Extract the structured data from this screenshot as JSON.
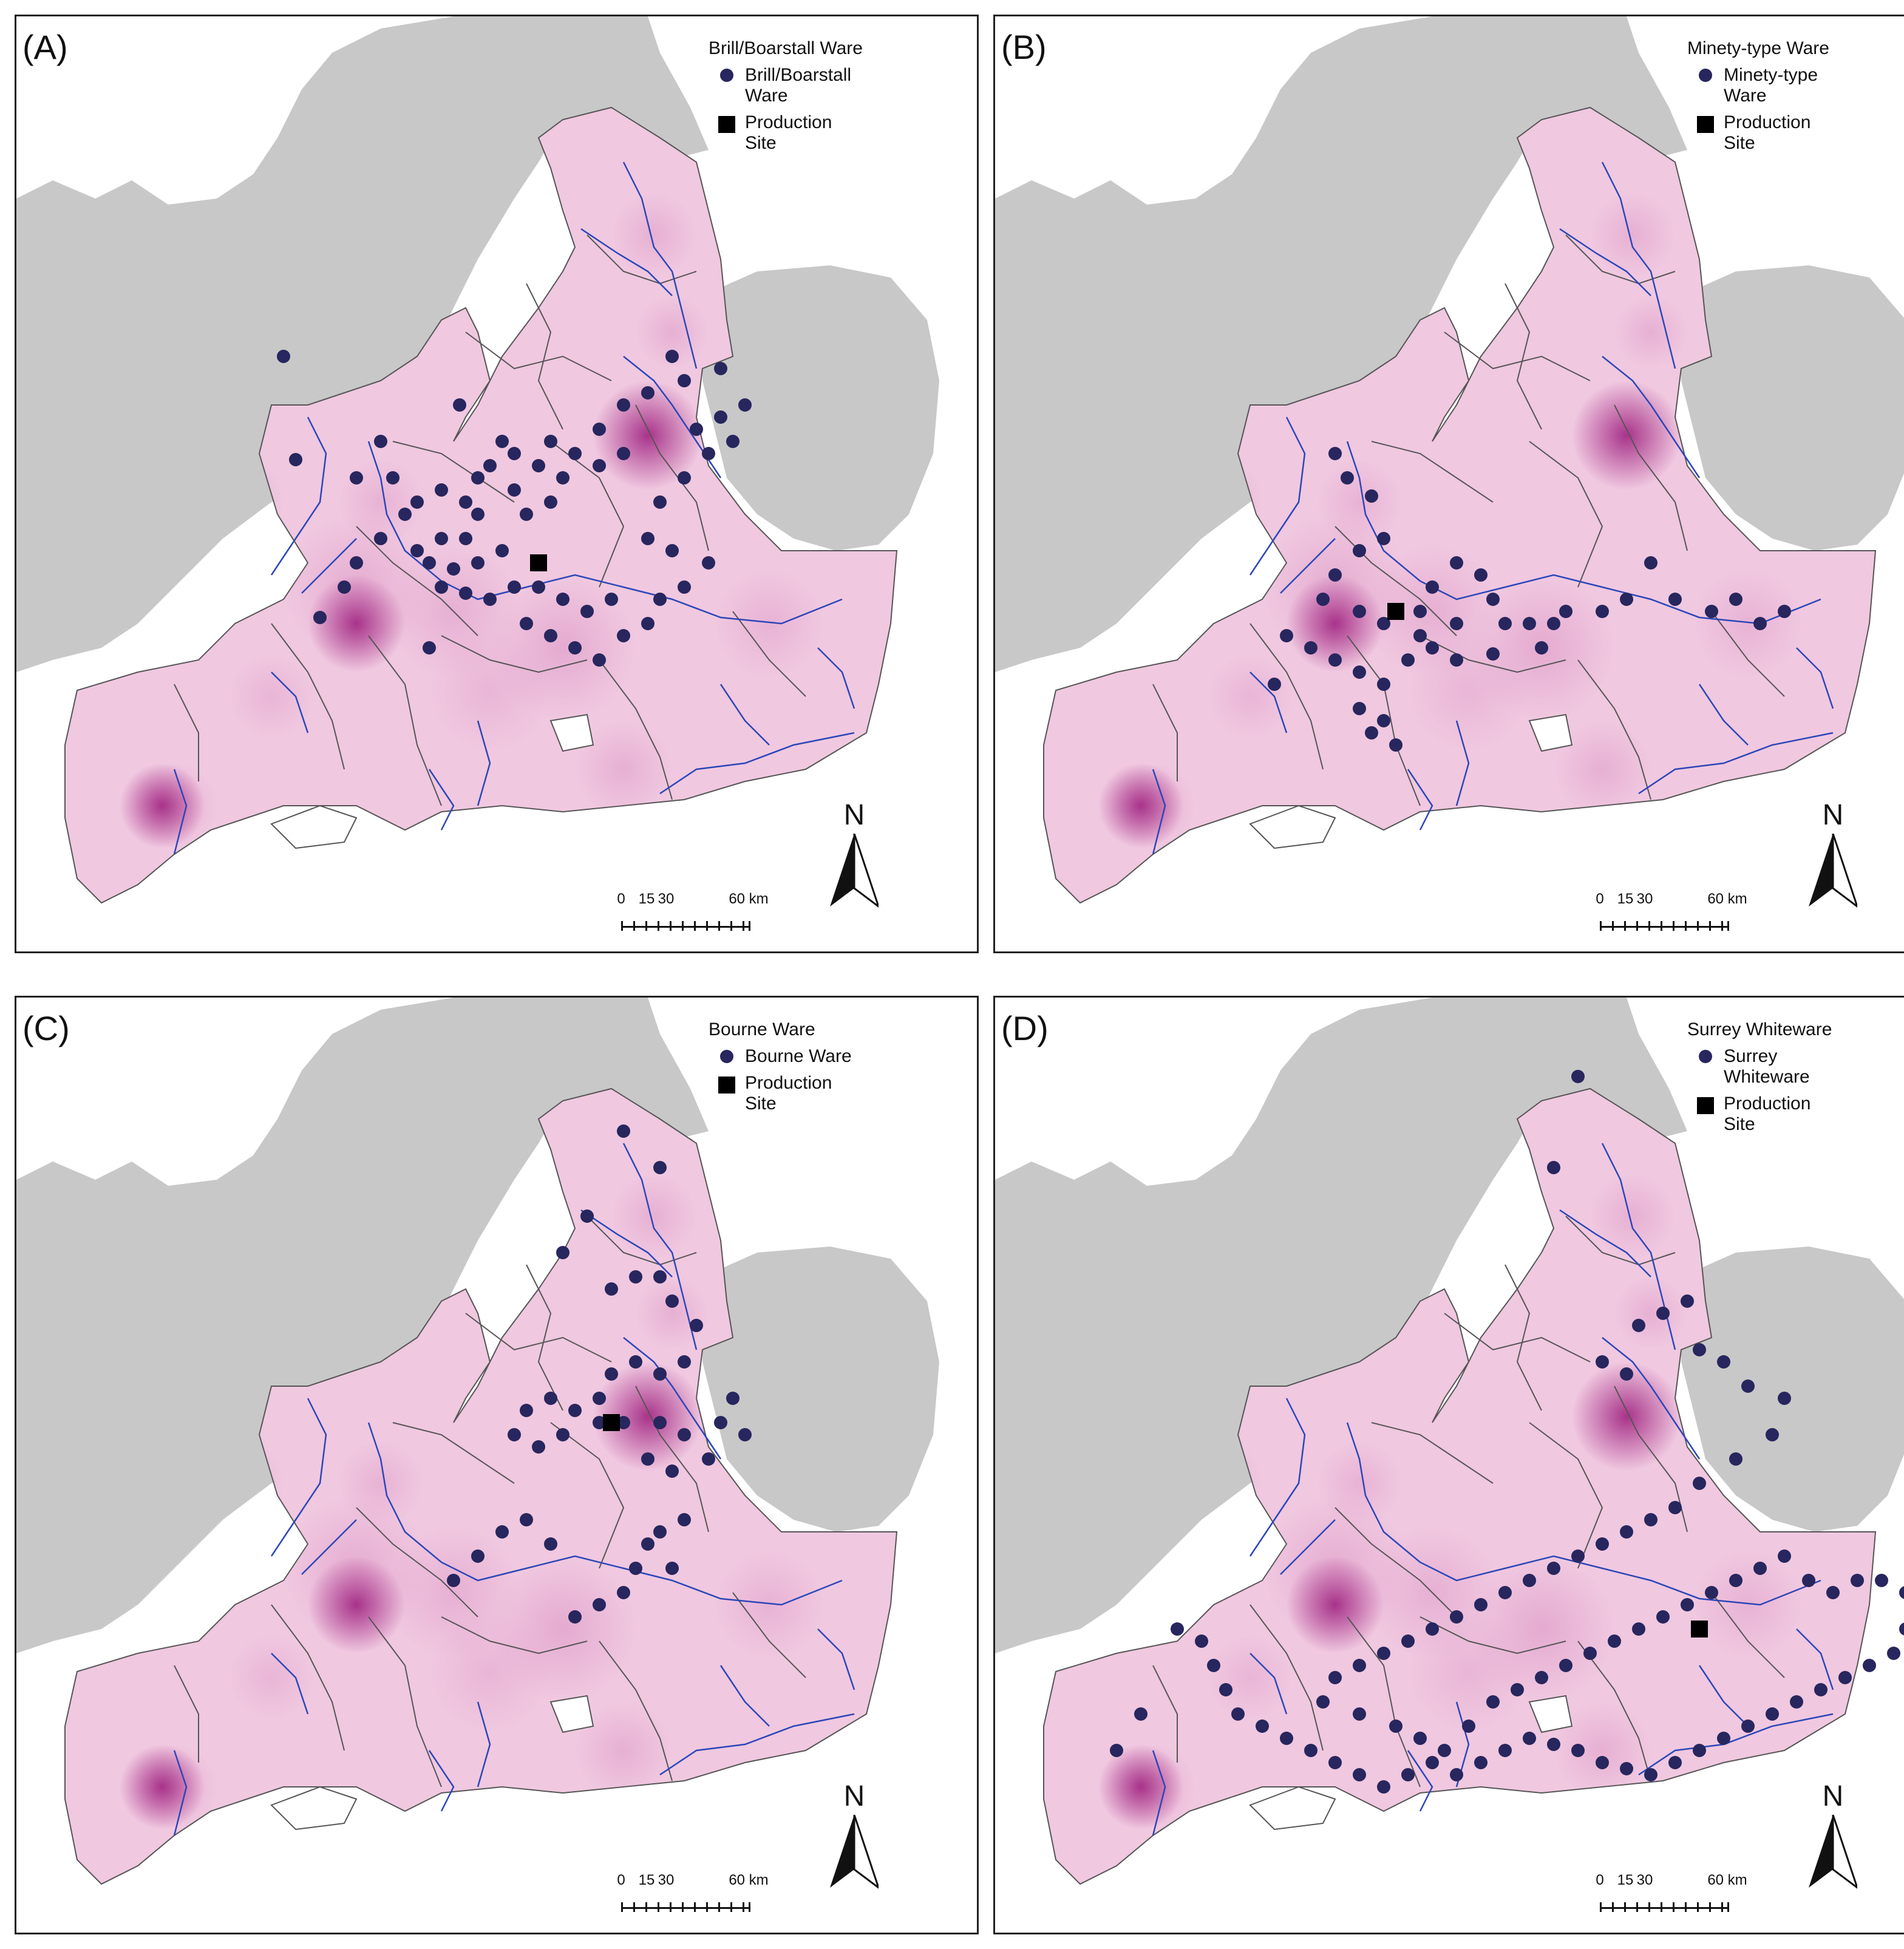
{
  "colors": {
    "land_gray": "#c8c8c8",
    "study_area": "#f0c8e0",
    "density_mid": "#d98cc0",
    "density_high": "#a8338a",
    "river": "#2b46b8",
    "boundary": "#555555",
    "site_dot": "#27265e",
    "production_site": "#000000",
    "sea": "#ffffff"
  },
  "panels": [
    {
      "label": "(A)",
      "legend": {
        "title": "Brill/Boarstall Ware",
        "dot_label": "Brill/Boarstall\nWare",
        "square_label": "Production\nSite"
      },
      "north_label": "N",
      "scale": {
        "tick_labels": [
          "0",
          "15",
          "30",
          "60 km"
        ]
      }
    },
    {
      "label": "(B)",
      "legend": {
        "title": "Minety-type Ware",
        "dot_label": "Minety-type\nWare",
        "square_label": "Production\nSite"
      },
      "north_label": "N",
      "scale": {
        "tick_labels": [
          "0",
          "15",
          "30",
          "60 km"
        ]
      }
    },
    {
      "label": "(C)",
      "legend": {
        "title": "Bourne Ware",
        "dot_label": "Bourne Ware",
        "square_label": "Production\nSite"
      },
      "north_label": "N",
      "scale": {
        "tick_labels": [
          "0",
          "15",
          "30",
          "60 km"
        ]
      }
    },
    {
      "label": "(D)",
      "legend": {
        "title": "Surrey Whiteware",
        "dot_label": "Surrey\nWhiteware",
        "square_label": "Production\nSite"
      },
      "north_label": "N",
      "scale": {
        "tick_labels": [
          "0",
          "15",
          "30",
          "60 km"
        ]
      }
    }
  ]
}
